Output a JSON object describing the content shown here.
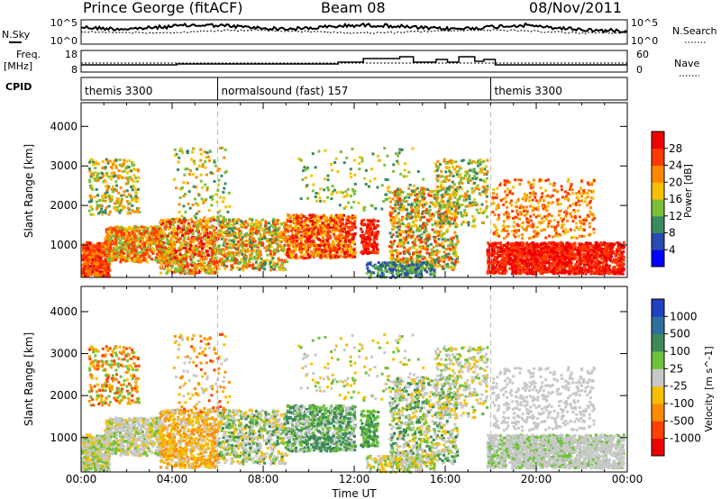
{
  "header": {
    "station": "Prince George (fitACF)",
    "beam": "Beam 08",
    "date": "08/Nov/2011"
  },
  "noise_panel": {
    "left_label": "N.Sky",
    "left_ticks": [
      "10^5",
      "10^0"
    ],
    "right_label": "N.Search",
    "right_ticks": [
      "10^5",
      "10^0"
    ]
  },
  "freq_panel": {
    "left_label_line1": "Freq.",
    "left_label_line2": "[MHz]",
    "left_ticks": [
      "18",
      "8"
    ],
    "right_label": "Nave",
    "right_ticks": [
      "60",
      "0"
    ]
  },
  "cpid_panel": {
    "label": "CPID",
    "segments": [
      {
        "name": "themis 3300",
        "start_hour": 0,
        "end_hour": 6
      },
      {
        "name": "normalsound (fast) 157",
        "start_hour": 6,
        "end_hour": 18
      },
      {
        "name": "themis 3300",
        "start_hour": 18,
        "end_hour": 24
      }
    ]
  },
  "chart_data": [
    {
      "type": "heatmap",
      "title": "Power",
      "ylabel": "Slant Range [km]",
      "xlabel": "Time UT",
      "x_ticks": [
        "00:00",
        "04:00",
        "08:00",
        "12:00",
        "16:00",
        "20:00",
        "00:00"
      ],
      "x_range_hours": [
        0,
        24
      ],
      "y_ticks": [
        1000,
        2000,
        3000,
        4000
      ],
      "ylim": [
        180,
        4600
      ],
      "colorbar_label": "Power [dB]",
      "colorbar_ticks": [
        "4",
        "8",
        "12",
        "16",
        "20",
        "24",
        "28"
      ],
      "colorbar_colors": [
        "#0000ff",
        "#2a4ab0",
        "#3a8a60",
        "#7cbf3a",
        "#f5c000",
        "#ff8800",
        "#ff3a00",
        "#ee0000"
      ],
      "dashed_times_hours": [
        6,
        18
      ]
    },
    {
      "type": "heatmap",
      "title": "Velocity",
      "ylabel": "Slant Range [km]",
      "xlabel": "Time UT",
      "x_ticks": [
        "00:00",
        "04:00",
        "08:00",
        "12:00",
        "16:00",
        "20:00",
        "00:00"
      ],
      "x_range_hours": [
        0,
        24
      ],
      "y_ticks": [
        1000,
        2000,
        3000,
        4000
      ],
      "ylim": [
        180,
        4600
      ],
      "colorbar_label": "Velocity [m s^-1]",
      "colorbar_ticks": [
        "1000",
        "500",
        "100",
        "25",
        "-25",
        "-100",
        "-500",
        "-1000"
      ],
      "colorbar_colors": [
        "#2040c0",
        "#2f6f9c",
        "#3d8a58",
        "#6fc23a",
        "#c8c8c8",
        "#f5c000",
        "#ff8c00",
        "#ff4000",
        "#ee0000"
      ],
      "dashed_times_hours": [
        6,
        18
      ]
    }
  ]
}
